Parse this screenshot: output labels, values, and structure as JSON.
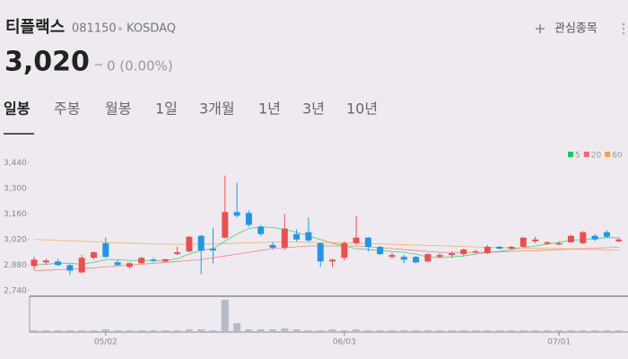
{
  "header": {
    "name": "티플랙스",
    "code": "081150",
    "market": "KOSDAQ",
    "watch": "관심종목",
    "price": "3,020",
    "change": "0 (0.00%)"
  },
  "tabs": [
    "일봉",
    "주봉",
    "월봉",
    "1일",
    "3개월",
    "1년",
    "3년",
    "10년"
  ],
  "chart_data": {
    "type": "candlestick",
    "categories": [
      null,
      null,
      null,
      null,
      null,
      null,
      "05/02",
      null,
      null,
      null,
      null,
      null,
      null,
      null,
      null,
      null,
      null,
      null,
      null,
      null,
      null,
      null,
      null,
      null,
      null,
      null,
      "06/03",
      null,
      null,
      null,
      null,
      null,
      null,
      null,
      null,
      null,
      null,
      null,
      null,
      null,
      null,
      null,
      null,
      null,
      "07/01",
      null,
      null,
      null,
      null,
      null
    ],
    "open": [
      2875,
      2895,
      2900,
      2880,
      2840,
      2920,
      3000,
      2895,
      2870,
      2890,
      2910,
      2900,
      2940,
      2955,
      3040,
      2970,
      3030,
      3170,
      3165,
      3090,
      2990,
      2975,
      3050,
      3060,
      3000,
      2900,
      2920,
      3000,
      3030,
      2980,
      2925,
      2925,
      2925,
      2900,
      2925,
      2935,
      2940,
      2950,
      2945,
      2980,
      2970,
      2980,
      3010,
      3000,
      2995,
      3005,
      3000,
      3040,
      3060,
      3010
    ],
    "high": [
      2925,
      2915,
      2915,
      2885,
      2935,
      2955,
      3030,
      2910,
      2895,
      2925,
      2920,
      2915,
      2980,
      3040,
      3045,
      3085,
      3370,
      3330,
      3180,
      3100,
      3005,
      3160,
      3075,
      3140,
      3005,
      2915,
      3010,
      3150,
      3035,
      2985,
      2950,
      2935,
      2930,
      2945,
      2945,
      2955,
      2970,
      2965,
      2990,
      2985,
      2985,
      3035,
      3035,
      3010,
      3010,
      3045,
      3065,
      3050,
      3070,
      3030
    ],
    "low": [
      2855,
      2880,
      2875,
      2825,
      2835,
      2910,
      2920,
      2875,
      2860,
      2885,
      2895,
      2895,
      2935,
      2950,
      2830,
      2890,
      3025,
      3140,
      3090,
      3040,
      2965,
      2965,
      3010,
      3005,
      2870,
      2870,
      2905,
      2990,
      2955,
      2935,
      2915,
      2890,
      2890,
      2895,
      2920,
      2920,
      2930,
      2945,
      2940,
      2965,
      2965,
      2975,
      3000,
      2990,
      2990,
      3000,
      2995,
      3010,
      3030,
      3005
    ],
    "close": [
      2910,
      2905,
      2880,
      2850,
      2920,
      2950,
      2925,
      2880,
      2890,
      2920,
      2905,
      2912,
      2950,
      3035,
      2960,
      2960,
      3170,
      3150,
      3100,
      3050,
      2975,
      3080,
      3020,
      3015,
      2900,
      2910,
      3000,
      3030,
      2980,
      2940,
      2935,
      2910,
      2895,
      2940,
      2935,
      2945,
      2965,
      2955,
      2980,
      2970,
      2980,
      3030,
      3020,
      3005,
      3000,
      3040,
      3060,
      3020,
      3035,
      3020
    ],
    "up_color": "#e8514f",
    "down_color": "#2196e6",
    "volume": [
      2,
      2,
      2,
      2,
      2,
      2,
      3,
      2,
      2,
      2,
      2,
      2,
      2,
      3,
      3,
      2,
      36,
      10,
      3,
      3,
      3,
      4,
      3,
      2,
      2,
      3,
      2,
      3,
      2,
      2,
      2,
      2,
      2,
      2,
      2,
      2,
      2,
      2,
      2,
      2,
      2,
      2,
      2,
      2,
      2,
      2,
      2,
      2,
      2,
      2
    ],
    "volume_color": "#b6bcc6",
    "series": [
      {
        "name": "5",
        "color": "#21c55d",
        "values": [
          2880,
          2885,
          2890,
          2890,
          2885,
          2895,
          2910,
          2910,
          2905,
          2905,
          2905,
          2905,
          2915,
          2940,
          2960,
          2970,
          3010,
          3050,
          3080,
          3090,
          3085,
          3075,
          3060,
          3040,
          3020,
          3000,
          2985,
          2970,
          2965,
          2960,
          2955,
          2950,
          2940,
          2925,
          2920,
          2925,
          2930,
          2940,
          2950,
          2955,
          2965,
          2975,
          2985,
          2995,
          3005,
          3015,
          3020,
          3025,
          3030,
          3030
        ]
      },
      {
        "name": "20",
        "color": "#f06a6a",
        "values": [
          2850,
          2852,
          2855,
          2858,
          2860,
          2865,
          2870,
          2875,
          2880,
          2885,
          2890,
          2895,
          2900,
          2905,
          2910,
          2920,
          2930,
          2940,
          2950,
          2960,
          2970,
          2975,
          2980,
          2985,
          2985,
          2985,
          2985,
          2985,
          2980,
          2975,
          2970,
          2965,
          2960,
          2955,
          2950,
          2950,
          2950,
          2950,
          2950,
          2952,
          2955,
          2958,
          2960,
          2962,
          2965,
          2968,
          2970,
          2972,
          2975,
          2978
        ]
      },
      {
        "name": "60",
        "color": "#f4a340",
        "values": [
          3020,
          3018,
          3015,
          3012,
          3010,
          3008,
          3005,
          3002,
          3000,
          2998,
          2996,
          2995,
          2994,
          2994,
          2995,
          2996,
          2998,
          3000,
          3002,
          3004,
          3005,
          3006,
          3006,
          3005,
          3004,
          3003,
          3002,
          3000,
          2998,
          2996,
          2994,
          2992,
          2990,
          2988,
          2986,
          2984,
          2982,
          2980,
          2978,
          2976,
          2975,
          2974,
          2973,
          2972,
          2970,
          2968,
          2966,
          2965,
          2963,
          2962
        ]
      }
    ],
    "ylim": [
      2710,
      3520
    ],
    "yticks": [
      {
        "value": 3440,
        "label": "3,440"
      },
      {
        "value": 3300,
        "label": "3,300"
      },
      {
        "value": 3160,
        "label": "3,160"
      },
      {
        "value": 3020,
        "label": "3,020"
      },
      {
        "value": 2880,
        "label": "2,880"
      },
      {
        "value": 2740,
        "label": "2,740"
      }
    ]
  }
}
